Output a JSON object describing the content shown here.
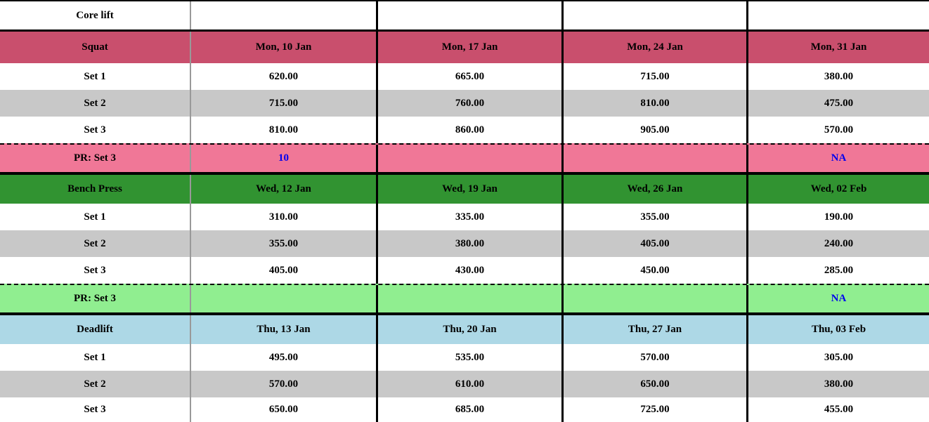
{
  "title_row": {
    "label": "Core lift"
  },
  "colors": {
    "squat_header": "#c94f6d",
    "squat_pr": "#f07797",
    "bench_header": "#319331",
    "bench_pr": "#90ee90",
    "deadlift_header": "#add8e6",
    "alt_row": "#c8c8c8",
    "white_row": "#ffffff",
    "pr_value_text": "#0000ee"
  },
  "sections": [
    {
      "name": "Squat",
      "dates": [
        "Mon, 10 Jan",
        "Mon, 17 Jan",
        "Mon, 24 Jan",
        "Mon, 31 Jan"
      ],
      "sets": [
        {
          "label": "Set 1",
          "values": [
            "620.00",
            "665.00",
            "715.00",
            "380.00"
          ]
        },
        {
          "label": "Set 2",
          "values": [
            "715.00",
            "760.00",
            "810.00",
            "475.00"
          ]
        },
        {
          "label": "Set 3",
          "values": [
            "810.00",
            "860.00",
            "905.00",
            "570.00"
          ]
        }
      ],
      "pr": {
        "label": "PR: Set 3",
        "values": [
          "10",
          "",
          "",
          "NA"
        ]
      }
    },
    {
      "name": "Bench Press",
      "dates": [
        "Wed, 12 Jan",
        "Wed, 19 Jan",
        "Wed, 26 Jan",
        "Wed, 02 Feb"
      ],
      "sets": [
        {
          "label": "Set 1",
          "values": [
            "310.00",
            "335.00",
            "355.00",
            "190.00"
          ]
        },
        {
          "label": "Set 2",
          "values": [
            "355.00",
            "380.00",
            "405.00",
            "240.00"
          ]
        },
        {
          "label": "Set 3",
          "values": [
            "405.00",
            "430.00",
            "450.00",
            "285.00"
          ]
        }
      ],
      "pr": {
        "label": "PR: Set 3",
        "values": [
          "",
          "",
          "",
          "NA"
        ]
      }
    },
    {
      "name": "Deadlift",
      "dates": [
        "Thu, 13 Jan",
        "Thu, 20 Jan",
        "Thu, 27 Jan",
        "Thu, 03 Feb"
      ],
      "sets": [
        {
          "label": "Set 1",
          "values": [
            "495.00",
            "535.00",
            "570.00",
            "305.00"
          ]
        },
        {
          "label": "Set 2",
          "values": [
            "570.00",
            "610.00",
            "650.00",
            "380.00"
          ]
        },
        {
          "label": "Set 3",
          "values": [
            "650.00",
            "685.00",
            "725.00",
            "455.00"
          ]
        }
      ]
    }
  ]
}
